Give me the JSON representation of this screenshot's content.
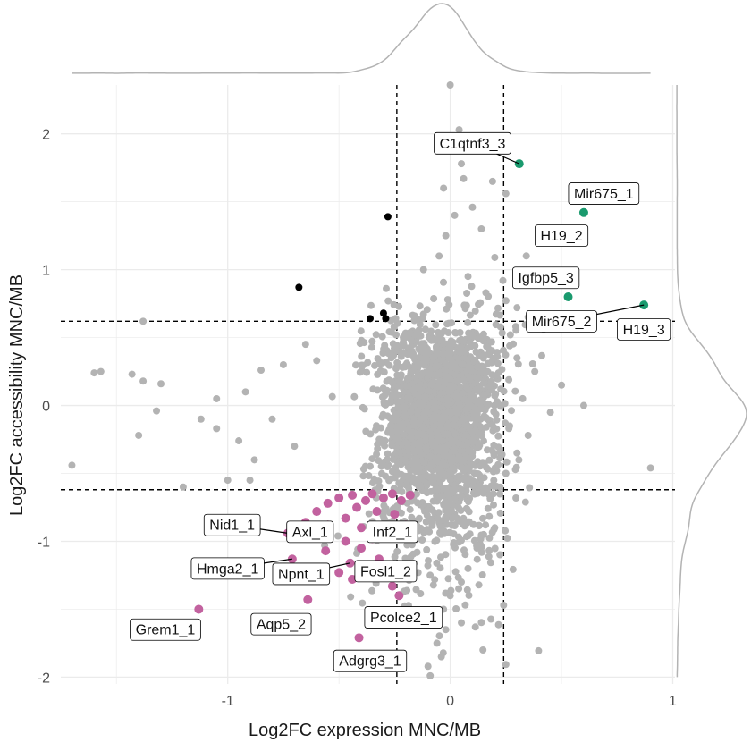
{
  "chart_data": {
    "type": "scatter",
    "title": "",
    "xlabel": "Log2FC expression MNC/MB",
    "ylabel": "Log2FC accessibility MNC/MB",
    "xlim": [
      -1.75,
      1.01
    ],
    "ylim": [
      -2.05,
      2.36
    ],
    "x_ticks": [
      -1,
      0,
      1
    ],
    "x_tick_labels": [
      "-1",
      "0",
      "1"
    ],
    "y_ticks": [
      -2,
      -1,
      0,
      1,
      2
    ],
    "y_tick_labels": [
      "-2",
      "-1",
      "0",
      "1",
      "2"
    ],
    "grid": true,
    "thresholds": {
      "x": [
        -0.24,
        0.24
      ],
      "y": [
        -0.62,
        0.62
      ]
    },
    "marginal_density": {
      "top": "x",
      "right": "y"
    },
    "colors": {
      "background_points": "#b3b3b3",
      "up_accessibility": "#000000",
      "down_both": "#c2629f",
      "up_both": "#1a9a6e",
      "threshold_line": "#000000",
      "grid": "#ebebeb",
      "density": "#b3b3b3"
    },
    "background_cloud": {
      "x_center": -0.05,
      "x_sd": 0.2,
      "y_center": -0.1,
      "y_sd": 0.35,
      "n_points": 2500
    },
    "background_outliers": [
      {
        "x": -1.7,
        "y": -0.44
      },
      {
        "x": -1.6,
        "y": 0.24
      },
      {
        "x": -1.57,
        "y": 0.25
      },
      {
        "x": -1.43,
        "y": 0.23
      },
      {
        "x": -1.38,
        "y": 0.18
      },
      {
        "x": -1.38,
        "y": 0.62
      },
      {
        "x": -1.32,
        "y": -0.04
      },
      {
        "x": -1.4,
        "y": -0.22
      },
      {
        "x": -1.3,
        "y": 0.16
      },
      {
        "x": -1.12,
        "y": -0.1
      },
      {
        "x": -1.05,
        "y": -0.17
      },
      {
        "x": -1.0,
        "y": -0.55
      },
      {
        "x": -1.05,
        "y": 0.05
      },
      {
        "x": -0.95,
        "y": -0.26
      },
      {
        "x": -0.92,
        "y": 0.1
      },
      {
        "x": -0.88,
        "y": -0.4
      },
      {
        "x": -0.85,
        "y": 0.26
      },
      {
        "x": -0.8,
        "y": -0.1
      },
      {
        "x": -0.75,
        "y": 0.3
      },
      {
        "x": -0.7,
        "y": -0.3
      },
      {
        "x": -0.65,
        "y": 0.45
      },
      {
        "x": -0.6,
        "y": 0.33
      },
      {
        "x": -1.2,
        "y": -0.6
      },
      {
        "x": -0.9,
        "y": -0.55
      },
      {
        "x": 0.0,
        "y": 2.36
      },
      {
        "x": 0.04,
        "y": 2.03
      },
      {
        "x": 0.05,
        "y": 1.78
      },
      {
        "x": 0.06,
        "y": 1.67
      },
      {
        "x": -0.03,
        "y": 1.6
      },
      {
        "x": 0.1,
        "y": 1.46
      },
      {
        "x": 0.02,
        "y": 1.4
      },
      {
        "x": -0.02,
        "y": 1.25
      },
      {
        "x": 0.14,
        "y": 1.3
      },
      {
        "x": -0.05,
        "y": 1.1
      },
      {
        "x": 0.2,
        "y": 1.09
      },
      {
        "x": -0.12,
        "y": 1.0
      },
      {
        "x": 0.08,
        "y": 0.95
      },
      {
        "x": 0.19,
        "y": 1.65
      },
      {
        "x": 0.25,
        "y": 1.56
      },
      {
        "x": 0.16,
        "y": 0.83
      },
      {
        "x": 0.3,
        "y": 0.72
      },
      {
        "x": 0.35,
        "y": 0.65
      },
      {
        "x": 0.42,
        "y": 0.56
      },
      {
        "x": 0.27,
        "y": 0.52
      },
      {
        "x": 0.3,
        "y": 0.35
      },
      {
        "x": 0.38,
        "y": 0.25
      },
      {
        "x": 0.45,
        "y": -0.05
      },
      {
        "x": 0.35,
        "y": -0.22
      },
      {
        "x": 0.3,
        "y": -0.35
      },
      {
        "x": 0.25,
        "y": -0.5
      },
      {
        "x": 0.9,
        "y": -0.46
      },
      {
        "x": 0.6,
        "y": 0.0
      },
      {
        "x": 0.5,
        "y": 0.15
      },
      {
        "x": 0.0,
        "y": -1.4
      },
      {
        "x": -0.03,
        "y": -1.5
      },
      {
        "x": 0.05,
        "y": -1.6
      },
      {
        "x": -0.02,
        "y": -1.65
      },
      {
        "x": -0.06,
        "y": -1.75
      },
      {
        "x": -0.04,
        "y": -1.85
      },
      {
        "x": -0.1,
        "y": -1.92
      },
      {
        "x": -0.09,
        "y": -1.99
      },
      {
        "x": 0.05,
        "y": -1.3
      },
      {
        "x": 0.08,
        "y": -1.2
      },
      {
        "x": 0.12,
        "y": -1.05
      },
      {
        "x": 0.15,
        "y": -0.95
      },
      {
        "x": 0.2,
        "y": -0.9
      }
    ],
    "series": [
      {
        "name": "",
        "color": "#000000",
        "points": [
          {
            "x": -0.68,
            "y": 0.87
          },
          {
            "x": -0.28,
            "y": 1.39
          },
          {
            "x": -0.36,
            "y": 0.64
          },
          {
            "x": -0.3,
            "y": 0.68
          },
          {
            "x": -0.29,
            "y": 0.64
          }
        ]
      },
      {
        "name": "",
        "color": "#1a9a6e",
        "points": [
          {
            "x": 0.31,
            "y": 1.78
          },
          {
            "x": 0.6,
            "y": 1.42
          },
          {
            "x": 0.53,
            "y": 0.8
          },
          {
            "x": 0.87,
            "y": 0.74
          }
        ]
      },
      {
        "name": "",
        "color": "#c2629f",
        "points": [
          {
            "x": -1.13,
            "y": -1.5
          },
          {
            "x": -0.71,
            "y": -1.13
          },
          {
            "x": -0.73,
            "y": -0.94
          },
          {
            "x": -0.65,
            "y": -0.86
          },
          {
            "x": -0.6,
            "y": -0.78
          },
          {
            "x": -0.55,
            "y": -0.72
          },
          {
            "x": -0.5,
            "y": -0.68
          },
          {
            "x": -0.44,
            "y": -0.66
          },
          {
            "x": -0.38,
            "y": -0.7
          },
          {
            "x": -0.35,
            "y": -0.65
          },
          {
            "x": -0.3,
            "y": -0.68
          },
          {
            "x": -0.26,
            "y": -0.65
          },
          {
            "x": -0.22,
            "y": -0.7
          },
          {
            "x": -0.18,
            "y": -0.66
          },
          {
            "x": -0.42,
            "y": -0.75
          },
          {
            "x": -0.33,
            "y": -0.78
          },
          {
            "x": -0.25,
            "y": -0.8
          },
          {
            "x": -0.47,
            "y": -0.83
          },
          {
            "x": -0.55,
            "y": -0.88
          },
          {
            "x": -0.4,
            "y": -0.9
          },
          {
            "x": -0.3,
            "y": -0.92
          },
          {
            "x": -0.2,
            "y": -0.88
          },
          {
            "x": -0.6,
            "y": -0.96
          },
          {
            "x": -0.47,
            "y": -1.0
          },
          {
            "x": -0.4,
            "y": -1.05
          },
          {
            "x": -0.35,
            "y": -0.98
          },
          {
            "x": -0.56,
            "y": -1.07
          },
          {
            "x": -0.45,
            "y": -1.16
          },
          {
            "x": -0.38,
            "y": -1.2
          },
          {
            "x": -0.32,
            "y": -1.13
          },
          {
            "x": -0.25,
            "y": -1.18
          },
          {
            "x": -0.2,
            "y": -1.25
          },
          {
            "x": -0.26,
            "y": -1.33
          },
          {
            "x": -0.44,
            "y": -1.28
          },
          {
            "x": -0.23,
            "y": -1.4
          },
          {
            "x": -0.64,
            "y": -1.43
          },
          {
            "x": -0.41,
            "y": -1.71
          },
          {
            "x": -0.5,
            "y": -1.23
          }
        ]
      }
    ],
    "annotations": [
      {
        "text": "C1qtnf3_3",
        "point": {
          "x": 0.31,
          "y": 1.78
        },
        "label_at": {
          "x": 0.1,
          "y": 1.93
        }
      },
      {
        "text": "Mir675_1",
        "point": {
          "x": 0.6,
          "y": 1.42
        },
        "label_at": {
          "x": 0.69,
          "y": 1.56
        }
      },
      {
        "text": "H19_2",
        "point": {
          "x": 0.6,
          "y": 1.42
        },
        "label_at": {
          "x": 0.5,
          "y": 1.25
        }
      },
      {
        "text": "Igfbp5_3",
        "point": {
          "x": 0.53,
          "y": 0.8
        },
        "label_at": {
          "x": 0.43,
          "y": 0.94
        }
      },
      {
        "text": "Mir675_2",
        "point": {
          "x": 0.87,
          "y": 0.74
        },
        "label_at": {
          "x": 0.5,
          "y": 0.62
        }
      },
      {
        "text": "H19_3",
        "point": {
          "x": 0.87,
          "y": 0.74
        },
        "label_at": {
          "x": 0.87,
          "y": 0.56
        }
      },
      {
        "text": "Nid1_1",
        "point": {
          "x": -0.73,
          "y": -0.94
        },
        "label_at": {
          "x": -0.98,
          "y": -0.88
        }
      },
      {
        "text": "Axl_1",
        "point": {
          "x": -0.6,
          "y": -0.96
        },
        "label_at": {
          "x": -0.63,
          "y": -0.93
        }
      },
      {
        "text": "Inf2_1",
        "point": {
          "x": -0.3,
          "y": -0.92
        },
        "label_at": {
          "x": -0.26,
          "y": -0.93
        }
      },
      {
        "text": "Hmga2_1",
        "point": {
          "x": -0.71,
          "y": -1.13
        },
        "label_at": {
          "x": -1.0,
          "y": -1.2
        }
      },
      {
        "text": "Npnt_1",
        "point": {
          "x": -0.45,
          "y": -1.16
        },
        "label_at": {
          "x": -0.67,
          "y": -1.24
        }
      },
      {
        "text": "Fosl1_2",
        "point": {
          "x": -0.32,
          "y": -1.13
        },
        "label_at": {
          "x": -0.29,
          "y": -1.22
        }
      },
      {
        "text": "Grem1_1",
        "point": {
          "x": -1.13,
          "y": -1.5
        },
        "label_at": {
          "x": -1.28,
          "y": -1.65
        }
      },
      {
        "text": "Aqp5_2",
        "point": {
          "x": -0.64,
          "y": -1.43
        },
        "label_at": {
          "x": -0.76,
          "y": -1.61
        }
      },
      {
        "text": "Pcolce2_1",
        "point": {
          "x": -0.26,
          "y": -1.33
        },
        "label_at": {
          "x": -0.21,
          "y": -1.56
        }
      },
      {
        "text": "Adgrg3_1",
        "point": {
          "x": -0.41,
          "y": -1.71
        },
        "label_at": {
          "x": -0.36,
          "y": -1.88
        }
      }
    ]
  }
}
